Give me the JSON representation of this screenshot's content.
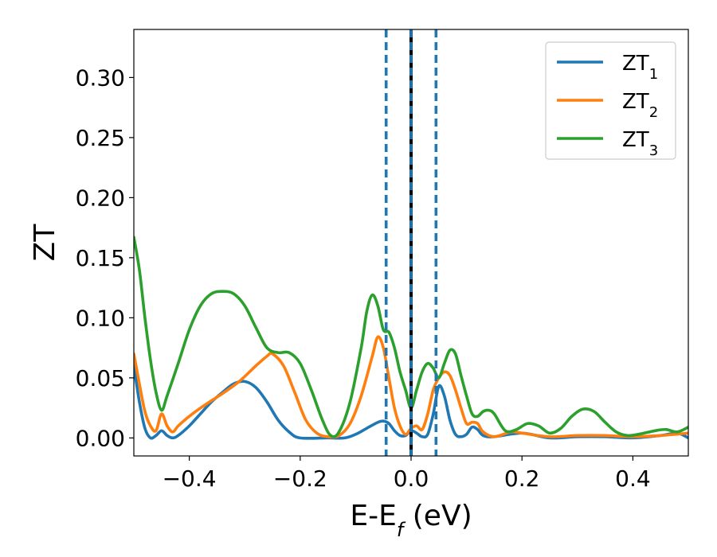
{
  "chart_data": {
    "type": "line",
    "xlabel": {
      "main": "E-E",
      "sub": "f",
      "unit": " (eV)"
    },
    "ylabel": "ZT",
    "xlim": [
      -0.5,
      0.5
    ],
    "ylim": [
      -0.015,
      0.34
    ],
    "x_ticks": [
      -0.4,
      -0.2,
      0.0,
      0.2,
      0.4
    ],
    "x_tick_labels": [
      "−0.4",
      "−0.2",
      "0.0",
      "0.2",
      "0.4"
    ],
    "y_ticks": [
      0.0,
      0.05,
      0.1,
      0.15,
      0.2,
      0.25,
      0.3
    ],
    "y_tick_labels": [
      "0.00",
      "0.05",
      "0.10",
      "0.15",
      "0.20",
      "0.25",
      "0.30"
    ],
    "grid": false,
    "legend_position": "top-right",
    "vertical_lines": [
      {
        "x": -0.045,
        "style": "dashed",
        "color": "#1f77b4"
      },
      {
        "x": 0.045,
        "style": "dashed",
        "color": "#1f77b4"
      },
      {
        "x": 0.0,
        "style": "solid",
        "color": "#000000"
      },
      {
        "x": 0.0,
        "style": "dashed",
        "color": "#1f77b4"
      }
    ],
    "series": [
      {
        "name": "ZT",
        "sub": "1",
        "color": "#1f77b4",
        "points": [
          [
            -0.5,
            0.06
          ],
          [
            -0.49,
            0.03
          ],
          [
            -0.48,
            0.008
          ],
          [
            -0.47,
            0.0
          ],
          [
            -0.46,
            0.002
          ],
          [
            -0.45,
            0.006
          ],
          [
            -0.44,
            0.002
          ],
          [
            -0.43,
            0.0
          ],
          [
            -0.42,
            0.002
          ],
          [
            -0.4,
            0.01
          ],
          [
            -0.38,
            0.02
          ],
          [
            -0.36,
            0.03
          ],
          [
            -0.34,
            0.038
          ],
          [
            -0.32,
            0.045
          ],
          [
            -0.3,
            0.047
          ],
          [
            -0.28,
            0.042
          ],
          [
            -0.26,
            0.03
          ],
          [
            -0.24,
            0.015
          ],
          [
            -0.22,
            0.005
          ],
          [
            -0.2,
            0.0
          ],
          [
            -0.15,
            0.0
          ],
          [
            -0.12,
            0.0
          ],
          [
            -0.1,
            0.003
          ],
          [
            -0.08,
            0.008
          ],
          [
            -0.06,
            0.013
          ],
          [
            -0.05,
            0.014
          ],
          [
            -0.04,
            0.012
          ],
          [
            -0.03,
            0.006
          ],
          [
            -0.02,
            0.002
          ],
          [
            -0.01,
            0.002
          ],
          [
            0.0,
            0.006
          ],
          [
            0.01,
            0.004
          ],
          [
            0.02,
            0.001
          ],
          [
            0.03,
            0.003
          ],
          [
            0.04,
            0.02
          ],
          [
            0.05,
            0.043
          ],
          [
            0.06,
            0.035
          ],
          [
            0.07,
            0.015
          ],
          [
            0.08,
            0.003
          ],
          [
            0.09,
            0.001
          ],
          [
            0.1,
            0.003
          ],
          [
            0.11,
            0.009
          ],
          [
            0.12,
            0.007
          ],
          [
            0.13,
            0.002
          ],
          [
            0.15,
            0.001
          ],
          [
            0.2,
            0.004
          ],
          [
            0.25,
            0.0
          ],
          [
            0.3,
            0.001
          ],
          [
            0.35,
            0.001
          ],
          [
            0.4,
            0.0
          ],
          [
            0.45,
            0.002
          ],
          [
            0.48,
            0.004
          ],
          [
            0.5,
            0.0
          ]
        ]
      },
      {
        "name": "ZT",
        "sub": "2",
        "color": "#ff7f0e",
        "points": [
          [
            -0.5,
            0.07
          ],
          [
            -0.49,
            0.045
          ],
          [
            -0.48,
            0.022
          ],
          [
            -0.47,
            0.01
          ],
          [
            -0.46,
            0.006
          ],
          [
            -0.45,
            0.02
          ],
          [
            -0.44,
            0.01
          ],
          [
            -0.43,
            0.005
          ],
          [
            -0.42,
            0.01
          ],
          [
            -0.4,
            0.018
          ],
          [
            -0.37,
            0.028
          ],
          [
            -0.34,
            0.037
          ],
          [
            -0.31,
            0.047
          ],
          [
            -0.28,
            0.06
          ],
          [
            -0.26,
            0.068
          ],
          [
            -0.25,
            0.07
          ],
          [
            -0.23,
            0.06
          ],
          [
            -0.21,
            0.038
          ],
          [
            -0.19,
            0.015
          ],
          [
            -0.17,
            0.004
          ],
          [
            -0.15,
            0.001
          ],
          [
            -0.13,
            0.002
          ],
          [
            -0.11,
            0.012
          ],
          [
            -0.09,
            0.035
          ],
          [
            -0.07,
            0.068
          ],
          [
            -0.06,
            0.084
          ],
          [
            -0.05,
            0.075
          ],
          [
            -0.04,
            0.05
          ],
          [
            -0.03,
            0.025
          ],
          [
            -0.02,
            0.01
          ],
          [
            -0.01,
            0.003
          ],
          [
            0.0,
            0.008
          ],
          [
            0.01,
            0.01
          ],
          [
            0.02,
            0.007
          ],
          [
            0.03,
            0.02
          ],
          [
            0.04,
            0.04
          ],
          [
            0.05,
            0.05
          ],
          [
            0.06,
            0.055
          ],
          [
            0.07,
            0.052
          ],
          [
            0.08,
            0.04
          ],
          [
            0.09,
            0.025
          ],
          [
            0.1,
            0.012
          ],
          [
            0.11,
            0.013
          ],
          [
            0.12,
            0.012
          ],
          [
            0.13,
            0.005
          ],
          [
            0.15,
            0.001
          ],
          [
            0.18,
            0.005
          ],
          [
            0.2,
            0.004
          ],
          [
            0.25,
            0.001
          ],
          [
            0.3,
            0.002
          ],
          [
            0.35,
            0.002
          ],
          [
            0.4,
            0.001
          ],
          [
            0.45,
            0.002
          ],
          [
            0.5,
            0.004
          ]
        ]
      },
      {
        "name": "ZT",
        "sub": "3",
        "color": "#2ca02c",
        "points": [
          [
            -0.5,
            0.167
          ],
          [
            -0.49,
            0.14
          ],
          [
            -0.48,
            0.1
          ],
          [
            -0.47,
            0.065
          ],
          [
            -0.46,
            0.038
          ],
          [
            -0.45,
            0.023
          ],
          [
            -0.44,
            0.035
          ],
          [
            -0.42,
            0.062
          ],
          [
            -0.4,
            0.09
          ],
          [
            -0.38,
            0.11
          ],
          [
            -0.36,
            0.12
          ],
          [
            -0.34,
            0.122
          ],
          [
            -0.32,
            0.12
          ],
          [
            -0.3,
            0.11
          ],
          [
            -0.28,
            0.092
          ],
          [
            -0.26,
            0.075
          ],
          [
            -0.24,
            0.071
          ],
          [
            -0.22,
            0.071
          ],
          [
            -0.2,
            0.062
          ],
          [
            -0.18,
            0.04
          ],
          [
            -0.16,
            0.015
          ],
          [
            -0.145,
            0.002
          ],
          [
            -0.13,
            0.005
          ],
          [
            -0.11,
            0.03
          ],
          [
            -0.09,
            0.075
          ],
          [
            -0.08,
            0.105
          ],
          [
            -0.07,
            0.119
          ],
          [
            -0.06,
            0.11
          ],
          [
            -0.05,
            0.09
          ],
          [
            -0.04,
            0.088
          ],
          [
            -0.03,
            0.075
          ],
          [
            -0.02,
            0.055
          ],
          [
            -0.01,
            0.04
          ],
          [
            0.0,
            0.025
          ],
          [
            0.01,
            0.04
          ],
          [
            0.02,
            0.055
          ],
          [
            0.03,
            0.062
          ],
          [
            0.04,
            0.058
          ],
          [
            0.05,
            0.05
          ],
          [
            0.06,
            0.062
          ],
          [
            0.07,
            0.073
          ],
          [
            0.08,
            0.07
          ],
          [
            0.09,
            0.052
          ],
          [
            0.1,
            0.035
          ],
          [
            0.11,
            0.02
          ],
          [
            0.12,
            0.018
          ],
          [
            0.13,
            0.022
          ],
          [
            0.14,
            0.023
          ],
          [
            0.15,
            0.02
          ],
          [
            0.17,
            0.006
          ],
          [
            0.19,
            0.007
          ],
          [
            0.21,
            0.012
          ],
          [
            0.23,
            0.01
          ],
          [
            0.25,
            0.004
          ],
          [
            0.27,
            0.008
          ],
          [
            0.29,
            0.018
          ],
          [
            0.31,
            0.024
          ],
          [
            0.33,
            0.022
          ],
          [
            0.35,
            0.013
          ],
          [
            0.37,
            0.005
          ],
          [
            0.39,
            0.002
          ],
          [
            0.41,
            0.003
          ],
          [
            0.44,
            0.006
          ],
          [
            0.46,
            0.007
          ],
          [
            0.48,
            0.005
          ],
          [
            0.5,
            0.009
          ]
        ]
      }
    ]
  }
}
